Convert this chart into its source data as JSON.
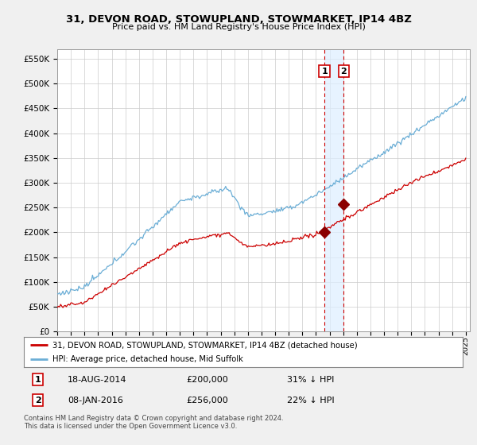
{
  "title": "31, DEVON ROAD, STOWUPLAND, STOWMARKET, IP14 4BZ",
  "subtitle": "Price paid vs. HM Land Registry's House Price Index (HPI)",
  "ylabel_ticks": [
    "£0",
    "£50K",
    "£100K",
    "£150K",
    "£200K",
    "£250K",
    "£300K",
    "£350K",
    "£400K",
    "£450K",
    "£500K",
    "£550K"
  ],
  "ytick_values": [
    0,
    50000,
    100000,
    150000,
    200000,
    250000,
    300000,
    350000,
    400000,
    450000,
    500000,
    550000
  ],
  "ylim": [
    0,
    570000
  ],
  "legend_line1": "31, DEVON ROAD, STOWUPLAND, STOWMARKET, IP14 4BZ (detached house)",
  "legend_line2": "HPI: Average price, detached house, Mid Suffolk",
  "transaction1_date": "18-AUG-2014",
  "transaction1_price": "£200,000",
  "transaction1_pct": "31% ↓ HPI",
  "transaction2_date": "08-JAN-2016",
  "transaction2_price": "£256,000",
  "transaction2_pct": "22% ↓ HPI",
  "footer": "Contains HM Land Registry data © Crown copyright and database right 2024.\nThis data is licensed under the Open Government Licence v3.0.",
  "hpi_color": "#6baed6",
  "price_color": "#cc0000",
  "marker_color": "#8b0000",
  "vline_color": "#cc0000",
  "shade_color": "#ddeeff",
  "background_color": "#f0f0f0",
  "plot_bg_color": "#ffffff",
  "grid_color": "#cccccc"
}
